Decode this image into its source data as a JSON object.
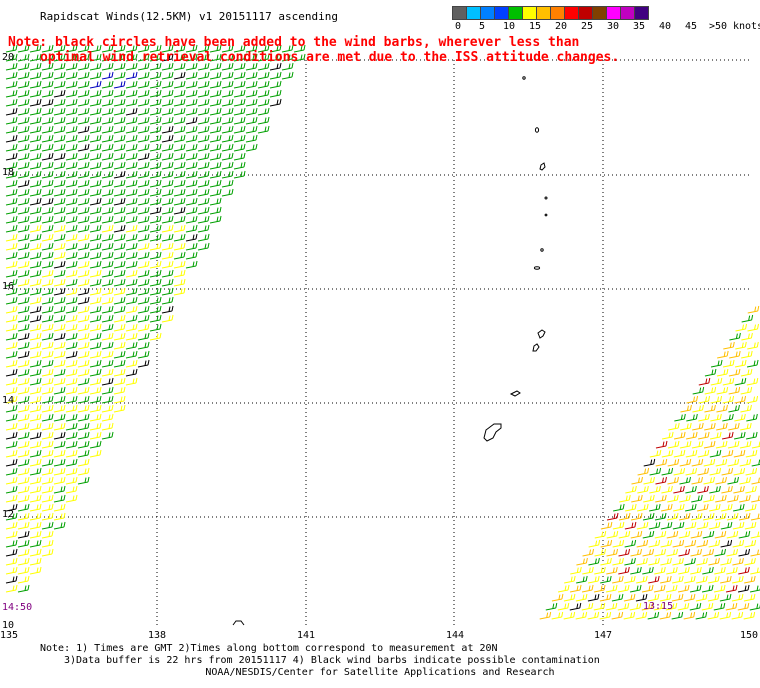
{
  "title": "Rapidscat Winds(12.5KM) v1 20151117 ascending",
  "note_line1": "Note: black circles have been added to the wind barbs, wherever less than",
  "note_line2": "optimal wind retrieval conditions are met due to the ISS attitude changes.",
  "legend": {
    "unit": "knots",
    "colors": [
      "#606060",
      "#00c0ff",
      "#0080ff",
      "#0040ff",
      "#00c000",
      "#ffff00",
      "#ffc000",
      "#ff8000",
      "#ff0000",
      "#c00000",
      "#804000",
      "#ff00ff",
      "#c000c0",
      "#400080"
    ],
    "labels": [
      "0",
      "5",
      "10",
      "15",
      "20",
      "25",
      "30",
      "35",
      "40",
      "45",
      ">50"
    ]
  },
  "lon_labels": [
    "135",
    "138",
    "141",
    "144",
    "147",
    "150"
  ],
  "lat_labels": [
    "20",
    "18",
    "16",
    "14",
    "12",
    "10"
  ],
  "time_left": "14:50",
  "time_right": "13:15",
  "footnote_line1": "Note: 1) Times are GMT 2)Times along bottom correspond to measurement at 20N",
  "footnote_line2": "3)Data buffer is 22 hrs from 20151117 4) Black wind barbs indicate possible contamination",
  "credit": "NOAA/NESDIS/Center for Satellite Applications and Research"
}
